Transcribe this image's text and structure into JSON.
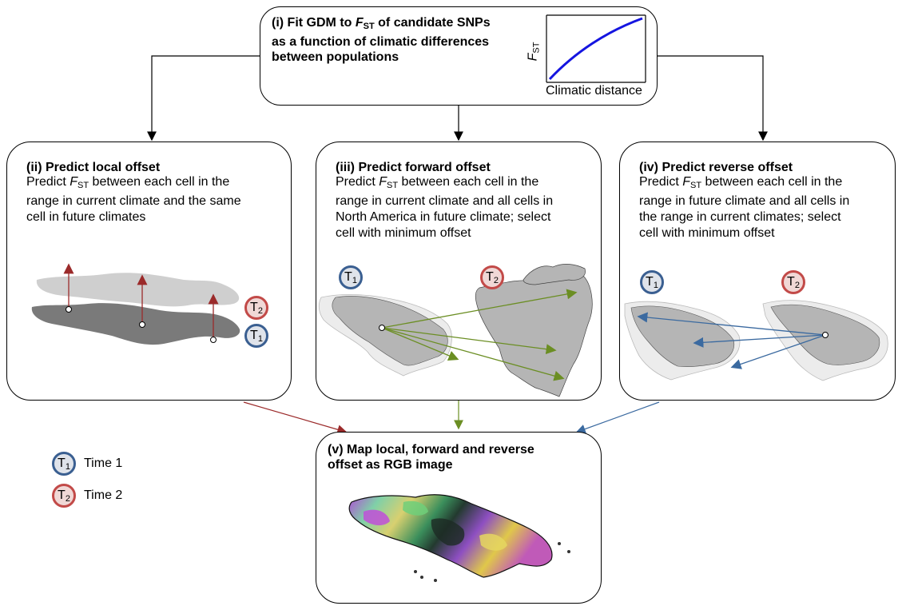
{
  "box_i": {
    "title_prefix": "(i) Fit GDM to ",
    "title_f": "F",
    "title_sub": "ST",
    "title_suffix": " of candidate SNPs",
    "title_line2": "as a function of climatic differences",
    "title_line3": "between populations",
    "inset_ylabel_f": "F",
    "inset_ylabel_sub": "ST",
    "inset_xlabel": "Climatic distance"
  },
  "box_ii": {
    "title": "(ii) Predict local offset",
    "desc_pre": "Predict ",
    "desc_f": "F",
    "desc_sub": "ST",
    "desc_post": " between each cell in the",
    "desc_line2": "range in current climate and the same",
    "desc_line3": "cell in future climates"
  },
  "box_iii": {
    "title": "(iii) Predict forward offset",
    "desc_pre": "Predict ",
    "desc_f": "F",
    "desc_sub": "ST",
    "desc_post": " between each cell in the",
    "desc_line2": "range in current climate and all cells in",
    "desc_line3": "North America in future climate; select",
    "desc_line4": "cell with minimum offset"
  },
  "box_iv": {
    "title": "(iv) Predict reverse offset",
    "desc_pre": "Predict ",
    "desc_f": "F",
    "desc_sub": "ST",
    "desc_post": " between each cell in the",
    "desc_line2": "range in future climate and all cells in",
    "desc_line3": "the range in current climates; select",
    "desc_line4": "cell with minimum offset"
  },
  "box_v": {
    "title_line1": "(v) Map local, forward and reverse",
    "title_line2": "offset as RGB image"
  },
  "badges": {
    "t_letter": "T",
    "t1_sub": "1",
    "t2_sub": "2"
  },
  "legend": {
    "time1": "Time 1",
    "time2": "Time 2"
  },
  "colors": {
    "t1_ring": "#3a5f91",
    "t2_ring": "#c24a48",
    "t1_fill": "#dfe3ea",
    "t2_fill": "#f0d8d6",
    "curve": "#1515e0",
    "local_arrow": "#9b2a2a",
    "forward_arrow": "#6b8e23",
    "reverse_arrow": "#3b6aa0",
    "range_dark": "#7a7a7a",
    "range_light": "#cfcfcf",
    "range_mid": "#b5b5b5"
  }
}
